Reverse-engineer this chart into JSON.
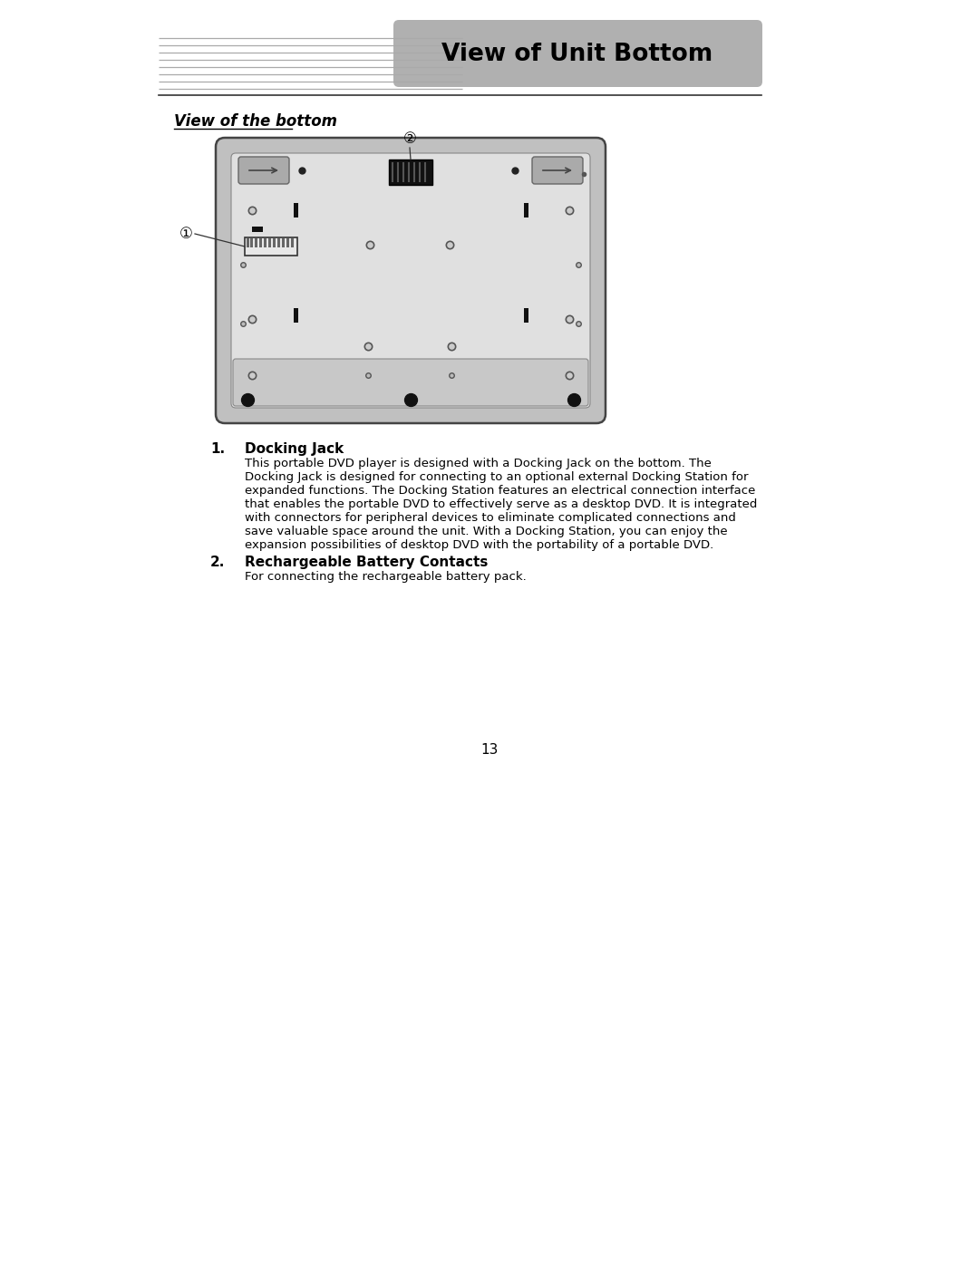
{
  "bg_color": "#ffffff",
  "header_bg": "#b0b0b0",
  "header_text": "View of Unit Bottom",
  "header_text_color": "#000000",
  "section_title": "View of the bottom",
  "item1_bold": "Docking Jack",
  "item1_lines": [
    "This portable DVD player is designed with a Docking Jack on the bottom. The",
    "Docking Jack is designed for connecting to an optional external Docking Station for",
    "expanded functions. The Docking Station features an electrical connection interface",
    "that enables the portable DVD to effectively serve as a desktop DVD. It is integrated",
    "with connectors for peripheral devices to eliminate complicated connections and",
    "save valuable space around the unit. With a Docking Station, you can enjoy the",
    "expansion possibilities of desktop DVD with the portability of a portable DVD."
  ],
  "item2_bold": "Rechargeable Battery Contacts",
  "item2_text": "For connecting the rechargeable battery pack.",
  "page_number": "13",
  "label1": "①",
  "label2": "②"
}
